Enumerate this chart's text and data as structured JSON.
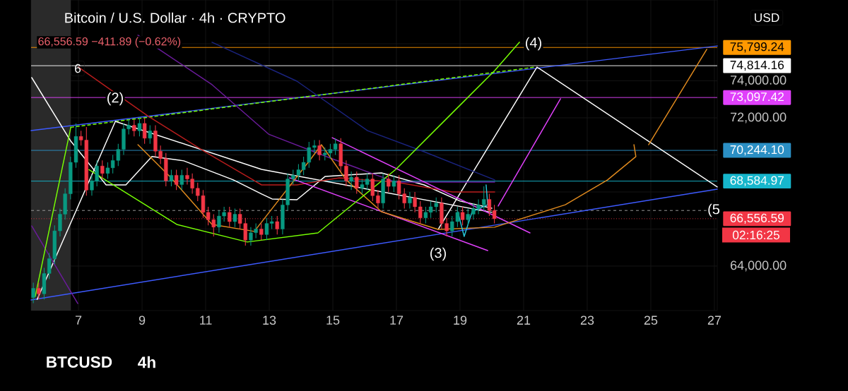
{
  "chart_data": {
    "type": "candlestick",
    "title": "Bitcoin / U.S. Dollar · 4h · CRYPTO",
    "subtitle": "66,556.59 −411.89 (−0.62%)",
    "x": [
      5.58,
      5.75,
      5.92,
      6.08,
      6.25,
      6.42,
      6.58,
      6.75,
      6.92,
      7.08,
      7.25,
      7.42,
      7.58,
      7.75,
      7.92,
      8.08,
      8.25,
      8.42,
      8.58,
      8.75,
      8.92,
      9.08,
      9.25,
      9.42,
      9.58,
      9.75,
      9.92,
      10.08,
      10.25,
      10.42,
      10.58,
      10.75,
      10.92,
      11.08,
      11.25,
      11.42,
      11.58,
      11.75,
      11.92,
      12.08,
      12.25,
      12.42,
      12.58,
      12.75,
      12.92,
      13.08,
      13.25,
      13.42,
      13.58,
      13.75,
      13.92,
      14.08,
      14.25,
      14.42,
      14.58,
      14.75,
      14.92,
      15.08,
      15.25,
      15.42,
      15.58,
      15.75,
      15.92,
      16.08,
      16.25,
      16.42,
      16.58,
      16.75,
      16.92,
      17.08,
      17.25,
      17.42,
      17.58,
      17.75,
      17.92,
      18.08,
      18.25,
      18.42,
      18.58,
      18.75,
      18.92,
      19.08,
      19.25,
      19.42,
      19.58,
      19.75,
      19.92,
      20.08
    ],
    "ohlc": [
      [
        62300,
        63100,
        62000,
        62800
      ],
      [
        62800,
        63100,
        62200,
        62500
      ],
      [
        62500,
        63900,
        62200,
        63600
      ],
      [
        63600,
        64700,
        63300,
        64400
      ],
      [
        64400,
        66200,
        64100,
        65900
      ],
      [
        65900,
        67100,
        65600,
        66800
      ],
      [
        66800,
        68200,
        66500,
        67900
      ],
      [
        67900,
        69900,
        67600,
        69600
      ],
      [
        69600,
        71700,
        69300,
        71000
      ],
      [
        71000,
        71300,
        70500,
        70800
      ],
      [
        70800,
        71500,
        67800,
        68100
      ],
      [
        68100,
        68900,
        67800,
        68600
      ],
      [
        68600,
        69700,
        68300,
        69400
      ],
      [
        69400,
        69700,
        68700,
        69000
      ],
      [
        69000,
        69600,
        68700,
        69300
      ],
      [
        69300,
        70000,
        69000,
        69700
      ],
      [
        69700,
        70600,
        69400,
        70300
      ],
      [
        70300,
        71700,
        70000,
        71400
      ],
      [
        71400,
        71900,
        71100,
        71600
      ],
      [
        71600,
        71900,
        71000,
        71300
      ],
      [
        71300,
        72000,
        71000,
        71700
      ],
      [
        71700,
        72000,
        70600,
        70900
      ],
      [
        70900,
        71600,
        70600,
        71300
      ],
      [
        71300,
        71600,
        69900,
        70200
      ],
      [
        70200,
        70500,
        69500,
        69800
      ],
      [
        69800,
        70100,
        68300,
        68600
      ],
      [
        68600,
        69200,
        68300,
        68900
      ],
      [
        68900,
        69200,
        68100,
        68400
      ],
      [
        68400,
        69200,
        68100,
        68900
      ],
      [
        68900,
        69300,
        68400,
        68700
      ],
      [
        68700,
        69000,
        67900,
        68200
      ],
      [
        68200,
        68500,
        67500,
        67800
      ],
      [
        67800,
        68100,
        66600,
        66900
      ],
      [
        66900,
        67200,
        66200,
        66500
      ],
      [
        66500,
        66800,
        65600,
        66100
      ],
      [
        66100,
        67000,
        65800,
        66700
      ],
      [
        66700,
        67200,
        66400,
        66900
      ],
      [
        66900,
        67200,
        66100,
        66400
      ],
      [
        66400,
        67100,
        66100,
        66800
      ],
      [
        66800,
        67100,
        66000,
        66300
      ],
      [
        66300,
        66600,
        65100,
        65400
      ],
      [
        65400,
        66100,
        65100,
        65800
      ],
      [
        65800,
        66300,
        65500,
        66000
      ],
      [
        66000,
        66300,
        65400,
        65700
      ],
      [
        65700,
        66600,
        65400,
        66300
      ],
      [
        66300,
        66700,
        66000,
        66400
      ],
      [
        66400,
        66700,
        65700,
        66000
      ],
      [
        66000,
        67600,
        65700,
        67300
      ],
      [
        67300,
        69000,
        67000,
        68700
      ],
      [
        68700,
        69200,
        68400,
        68900
      ],
      [
        68900,
        69500,
        68600,
        69200
      ],
      [
        69200,
        69900,
        68900,
        69600
      ],
      [
        69600,
        70700,
        69300,
        70400
      ],
      [
        70400,
        70800,
        70100,
        70500
      ],
      [
        70500,
        70800,
        69700,
        70000
      ],
      [
        70000,
        70400,
        69700,
        70100
      ],
      [
        70100,
        70600,
        69800,
        70300
      ],
      [
        70300,
        70900,
        70000,
        70600
      ],
      [
        70600,
        70900,
        69100,
        69400
      ],
      [
        69400,
        69700,
        68300,
        68600
      ],
      [
        68600,
        69100,
        68100,
        68800
      ],
      [
        68800,
        69100,
        67900,
        68200
      ],
      [
        68200,
        68700,
        67900,
        68400
      ],
      [
        68400,
        69000,
        68100,
        68700
      ],
      [
        68700,
        69000,
        67500,
        67800
      ],
      [
        67800,
        68100,
        67100,
        67400
      ],
      [
        67400,
        69000,
        67100,
        68700
      ],
      [
        68700,
        69000,
        68000,
        68300
      ],
      [
        68300,
        68900,
        68000,
        68600
      ],
      [
        68600,
        68900,
        67600,
        67900
      ],
      [
        67900,
        68200,
        67100,
        67400
      ],
      [
        67400,
        68000,
        67100,
        67700
      ],
      [
        67700,
        68000,
        66900,
        67200
      ],
      [
        67200,
        67500,
        66300,
        66600
      ],
      [
        66600,
        67200,
        66300,
        66900
      ],
      [
        66900,
        67500,
        66600,
        67200
      ],
      [
        67200,
        67700,
        66900,
        67400
      ],
      [
        67400,
        67700,
        66000,
        66300
      ],
      [
        66300,
        66600,
        65600,
        65900
      ],
      [
        65900,
        66700,
        65600,
        66400
      ],
      [
        66400,
        67200,
        66100,
        66900
      ],
      [
        66900,
        67200,
        66200,
        66500
      ],
      [
        66500,
        67100,
        66200,
        66800
      ],
      [
        66800,
        67400,
        66500,
        67100
      ],
      [
        67100,
        67600,
        66800,
        67300
      ],
      [
        67300,
        68300,
        67000,
        67600
      ],
      [
        67600,
        67900,
        66700,
        67000
      ],
      [
        67000,
        67300,
        66300,
        66556.59
      ]
    ],
    "colors": [
      "#089981",
      "#f23645",
      "#089981",
      "#089981",
      "#089981",
      "#089981",
      "#089981",
      "#089981",
      "#089981",
      "#f23645",
      "#f23645",
      "#089981",
      "#089981",
      "#f23645",
      "#089981",
      "#089981",
      "#089981",
      "#089981",
      "#089981",
      "#f23645",
      "#089981",
      "#f23645",
      "#089981",
      "#f23645",
      "#f23645",
      "#f23645",
      "#089981",
      "#f23645",
      "#089981",
      "#f23645",
      "#f23645",
      "#f23645",
      "#f23645",
      "#f23645",
      "#f23645",
      "#089981",
      "#089981",
      "#f23645",
      "#089981",
      "#f23645",
      "#f23645",
      "#089981",
      "#089981",
      "#f23645",
      "#089981",
      "#089981",
      "#f23645",
      "#089981",
      "#089981",
      "#089981",
      "#089981",
      "#089981",
      "#089981",
      "#089981",
      "#f23645",
      "#089981",
      "#089981",
      "#089981",
      "#f23645",
      "#f23645",
      "#089981",
      "#f23645",
      "#089981",
      "#089981",
      "#f23645",
      "#f23645",
      "#089981",
      "#f23645",
      "#089981",
      "#f23645",
      "#f23645",
      "#089981",
      "#f23645",
      "#f23645",
      "#089981",
      "#089981",
      "#089981",
      "#f23645",
      "#f23645",
      "#089981",
      "#089981",
      "#f23645",
      "#089981",
      "#089981",
      "#089981",
      "#089981",
      "#f23645",
      "#f23645"
    ],
    "series": [
      {
        "type": "line",
        "color": "#3d5afe",
        "x": [
          5.51,
          27.09
        ],
        "values": [
          71310,
          75880
        ]
      },
      {
        "type": "line",
        "color": "#3d5afe",
        "x": [
          5.51,
          27.09
        ],
        "values": [
          62170,
          68150
        ]
      },
      {
        "type": "line",
        "color": "#76ff03",
        "line_style": "dashed",
        "x": [
          6.76,
          21.31
        ],
        "values": [
          71490,
          74730
        ]
      },
      {
        "type": "line",
        "color": "#ffffff",
        "x": [
          5.7,
          8.16
        ],
        "values": [
          62200,
          71810
        ]
      },
      {
        "type": "line",
        "color": "#ffffff",
        "x": [
          8.16,
          12.76,
          20.0
        ],
        "values": [
          71810,
          69220,
          66900
        ]
      },
      {
        "type": "line",
        "color": "#ffffff",
        "x": [
          18.31,
          21.42,
          27.09
        ],
        "values": [
          65980,
          74740,
          68270
        ]
      },
      {
        "type": "line",
        "color": "#ffffff",
        "x": [
          5.53,
          6.76,
          7.87,
          8.49,
          9.31,
          10.31,
          11.87,
          12.76,
          13.09,
          13.87,
          14.76,
          16.53,
          17.87,
          19.0,
          20.0
        ],
        "values": [
          74170,
          70740,
          68380,
          68380,
          69910,
          69680,
          68650,
          67890,
          67620,
          67580,
          68840,
          69030,
          68380,
          67510,
          67120
        ]
      },
      {
        "type": "line",
        "color": "#b71c1c",
        "x": [
          7.0,
          9.2,
          10.98,
          12.76,
          13.87,
          15.2,
          16.98,
          18.76,
          20.09
        ],
        "values": [
          74740,
          72080,
          70170,
          68380,
          68380,
          68760,
          68530,
          68000,
          68000
        ]
      },
      {
        "type": "line",
        "color": "#1a237e",
        "x": [
          11.2,
          13.87,
          16.09,
          17.87,
          20.09
        ],
        "values": [
          76080,
          73980,
          71310,
          70170,
          68650
        ]
      },
      {
        "type": "line",
        "color": "#6a1b9a",
        "x": [
          8.87,
          11.2,
          12.98,
          14.98,
          16.98,
          20.09
        ],
        "values": [
          76460,
          73790,
          71120,
          69790,
          68530,
          68530
        ]
      },
      {
        "type": "line",
        "color": "#6a1b9a",
        "x": [
          5.53,
          6.98
        ],
        "values": [
          66170,
          61980
        ]
      },
      {
        "type": "line",
        "color": "#e040fb",
        "x": [
          14.98,
          21.2
        ],
        "values": [
          70930,
          65790
        ]
      },
      {
        "type": "line",
        "color": "#e040fb",
        "x": [
          13.64,
          19.87
        ],
        "values": [
          68760,
          64840
        ]
      },
      {
        "type": "line",
        "color": "#e040fb",
        "x": [
          20.2,
          22.16
        ],
        "values": [
          67240,
          73030
        ]
      },
      {
        "type": "line",
        "color": "#e08a1e",
        "x": [
          8.87,
          9.87,
          11.2,
          12.53,
          14.31,
          14.64,
          15.42,
          16.53,
          18.31,
          20.09,
          22.31,
          23.64,
          24.53,
          24.47
        ],
        "values": [
          70550,
          68840,
          66250,
          65870,
          69790,
          70550,
          68650,
          66930,
          65980,
          66100,
          67310,
          68650,
          69910,
          70550
        ]
      },
      {
        "type": "line",
        "color": "#e08a1e",
        "x": [
          24.93,
          26.76
        ],
        "values": [
          70550,
          75700
        ]
      },
      {
        "type": "line",
        "color": "#76ff03",
        "x": [
          7.33,
          10.09,
          12.31,
          14.53,
          16.98,
          18.76,
          20.09,
          20.87
        ],
        "values": [
          69200,
          66250,
          65300,
          65790,
          69220,
          72270,
          74550,
          76080
        ]
      },
      {
        "type": "line",
        "color": "#76ff03",
        "x": [
          5.64,
          6.76
        ],
        "values": [
          62360,
          71500
        ]
      },
      {
        "type": "line",
        "color": "#26c6da",
        "x": [
          18.93,
          19.13,
          19.38,
          19.87,
          19.82
        ],
        "values": [
          66930,
          65600,
          66930,
          67310,
          68380
        ]
      }
    ],
    "xlim": [
      5.51,
      27.09
    ],
    "ylim": [
      61600,
      78360
    ],
    "xticks": [
      7,
      9,
      11,
      13,
      15,
      17,
      19,
      21,
      23,
      25,
      27
    ],
    "yticks": [
      {
        "value": 64000,
        "label": "64,000.00"
      },
      {
        "value": 66000,
        "label": null
      },
      {
        "value": 68000,
        "label": null
      },
      {
        "value": 70000,
        "label": null
      },
      {
        "value": 72000,
        "label": "72,000.00"
      },
      {
        "value": 74000,
        "label": "74,000.00"
      },
      {
        "value": 76000,
        "label": null
      }
    ],
    "grid": true,
    "bands": [
      {
        "axis": "x",
        "from": 5.51,
        "to": 6.76,
        "color": "#2a2a2a"
      }
    ],
    "ref_lines": [
      {
        "axis": "y",
        "value": 75799.24,
        "label": "75,799.24",
        "color": "#ff9800"
      },
      {
        "axis": "y",
        "value": 74814.16,
        "label": "74,814.16",
        "color": "#ffffff"
      },
      {
        "axis": "y",
        "value": 73097.42,
        "label": "73,097.42",
        "color": "#e040fb"
      },
      {
        "axis": "y",
        "value": 70244.1,
        "label": "70,244.10",
        "color": "#2b8fc4"
      },
      {
        "axis": "y",
        "value": 68584.97,
        "label": "68,584.97",
        "color": "#16b6cc"
      },
      {
        "axis": "y",
        "value": 67000,
        "color": "#9e9e9e",
        "line_style": "dashed"
      },
      {
        "axis": "y",
        "value": 66556.59,
        "label": "66,556.59",
        "color": "#f23645",
        "line_style": "dotted"
      }
    ],
    "annotations": [
      "(2)",
      "(3)",
      "(4)",
      "(5",
      "02:16:25",
      "6",
      "USD",
      "BTCUSD",
      "4h"
    ]
  }
}
